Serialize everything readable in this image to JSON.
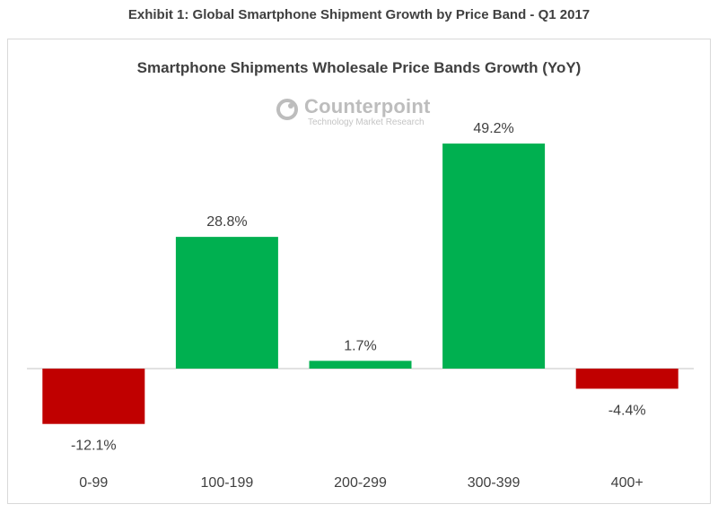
{
  "exhibit_title": "Exhibit 1: Global Smartphone Shipment Growth by Price Band - Q1 2017",
  "logo": {
    "name": "Counterpoint",
    "tagline": "Technology Market Research"
  },
  "chart_data": {
    "type": "bar",
    "title": "Smartphone Shipments Wholesale Price Bands Growth (YoY)",
    "categories": [
      "0-99",
      "100-199",
      "200-299",
      "300-399",
      "400+"
    ],
    "values": [
      -12.1,
      28.8,
      1.7,
      49.2,
      -4.4
    ],
    "value_labels": [
      "-12.1%",
      "28.8%",
      "1.7%",
      "49.2%",
      "-4.4%"
    ],
    "xlabel": "",
    "ylabel": "",
    "grid": false,
    "legend": "none",
    "colors": {
      "positive": "#00b050",
      "negative": "#c00000",
      "axis": "#d9d9d9"
    }
  }
}
